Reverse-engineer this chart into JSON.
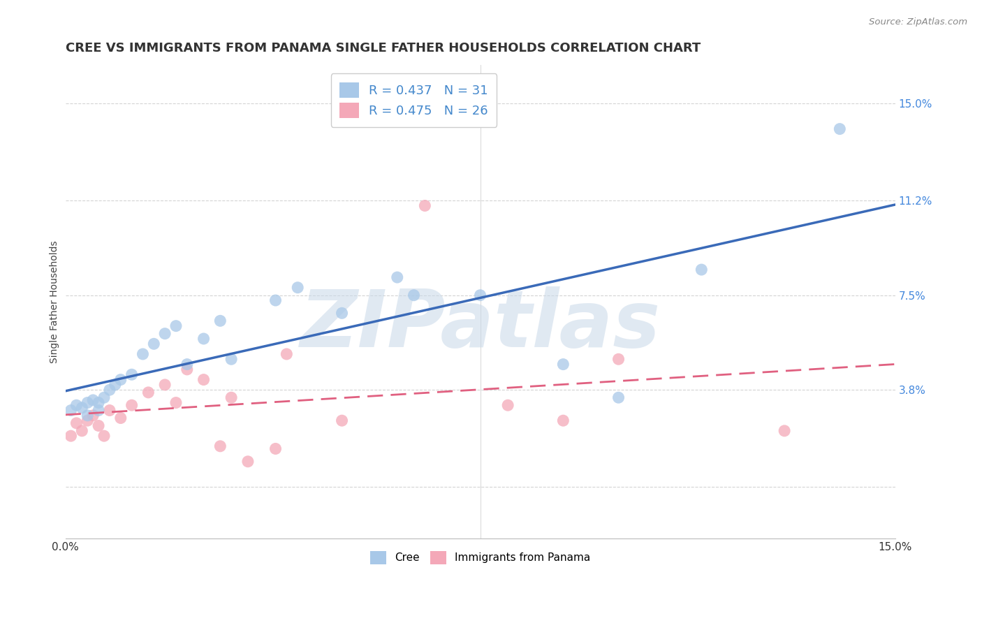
{
  "title": "CREE VS IMMIGRANTS FROM PANAMA SINGLE FATHER HOUSEHOLDS CORRELATION CHART",
  "source": "Source: ZipAtlas.com",
  "ylabel": "Single Father Households",
  "xlim": [
    0.0,
    0.15
  ],
  "ylim": [
    -0.02,
    0.165
  ],
  "yticks": [
    0.0,
    0.038,
    0.075,
    0.112,
    0.15
  ],
  "ytick_labels": [
    "",
    "3.8%",
    "7.5%",
    "11.2%",
    "15.0%"
  ],
  "xticks": [
    0.0,
    0.025,
    0.05,
    0.075,
    0.1,
    0.125,
    0.15
  ],
  "xtick_labels": [
    "0.0%",
    "",
    "",
    "",
    "",
    "",
    "15.0%"
  ],
  "legend_r_cree": "R = 0.437",
  "legend_n_cree": "N = 31",
  "legend_r_panama": "R = 0.475",
  "legend_n_panama": "N = 26",
  "cree_color": "#a8c8e8",
  "panama_color": "#f4a8b8",
  "cree_line_color": "#3a6ab8",
  "panama_line_color": "#e06080",
  "watermark": "ZIPatlas",
  "cree_x": [
    0.001,
    0.002,
    0.003,
    0.004,
    0.004,
    0.005,
    0.006,
    0.006,
    0.007,
    0.008,
    0.009,
    0.01,
    0.012,
    0.014,
    0.016,
    0.018,
    0.02,
    0.022,
    0.025,
    0.028,
    0.03,
    0.038,
    0.042,
    0.05,
    0.06,
    0.063,
    0.075,
    0.09,
    0.1,
    0.115,
    0.14
  ],
  "cree_y": [
    0.03,
    0.032,
    0.031,
    0.033,
    0.028,
    0.034,
    0.03,
    0.033,
    0.035,
    0.038,
    0.04,
    0.042,
    0.044,
    0.052,
    0.056,
    0.06,
    0.063,
    0.048,
    0.058,
    0.065,
    0.05,
    0.073,
    0.078,
    0.068,
    0.082,
    0.075,
    0.075,
    0.048,
    0.035,
    0.085,
    0.14
  ],
  "panama_x": [
    0.001,
    0.002,
    0.003,
    0.004,
    0.005,
    0.006,
    0.007,
    0.008,
    0.01,
    0.012,
    0.015,
    0.018,
    0.02,
    0.022,
    0.025,
    0.028,
    0.03,
    0.033,
    0.038,
    0.04,
    0.05,
    0.065,
    0.08,
    0.09,
    0.1,
    0.13
  ],
  "panama_y": [
    0.02,
    0.025,
    0.022,
    0.026,
    0.028,
    0.024,
    0.02,
    0.03,
    0.027,
    0.032,
    0.037,
    0.04,
    0.033,
    0.046,
    0.042,
    0.016,
    0.035,
    0.01,
    0.015,
    0.052,
    0.026,
    0.11,
    0.032,
    0.026,
    0.05,
    0.022
  ],
  "background_color": "#ffffff",
  "grid_color": "#d0d0d0",
  "title_fontsize": 13,
  "axis_label_fontsize": 10,
  "tick_fontsize": 11,
  "legend_fontsize": 13
}
